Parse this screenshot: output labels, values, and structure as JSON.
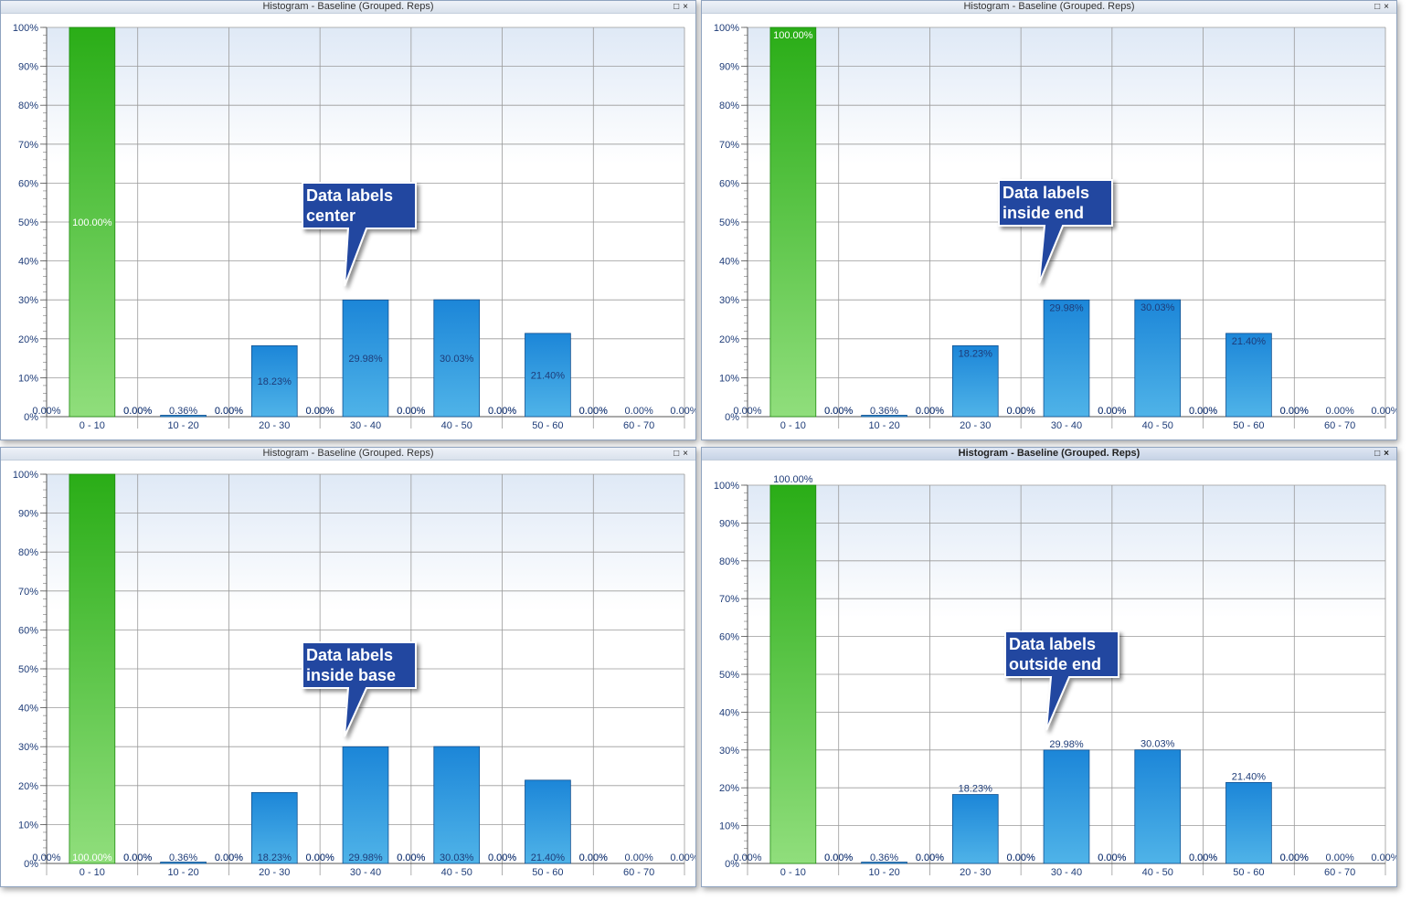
{
  "panels": [
    {
      "title": "Histogram - Baseline (Grouped. Reps)",
      "callout": [
        "Data labels",
        "center"
      ],
      "label_mode": "center",
      "active": false
    },
    {
      "title": "Histogram - Baseline (Grouped. Reps)",
      "callout": [
        "Data labels",
        "inside end"
      ],
      "label_mode": "inside-end",
      "active": false
    },
    {
      "title": "Histogram - Baseline (Grouped. Reps)",
      "callout": [
        "Data labels",
        "inside base"
      ],
      "label_mode": "inside-base",
      "active": false
    },
    {
      "title": "Histogram - Baseline (Grouped. Reps)",
      "callout": [
        "Data labels",
        "outside end"
      ],
      "label_mode": "outside-end",
      "active": true
    }
  ],
  "window_controls": {
    "restore_icon": "restore-icon",
    "close_icon": "close-icon"
  },
  "colors": {
    "green_top": "#2aad17",
    "green_bottom": "#90de7c",
    "blue_top": "#1c86d8",
    "blue_bottom": "#4fb3e8",
    "callout_fill": "#2146a0",
    "axis_text": "#1e3c78",
    "grid": "#9a9a9a"
  },
  "chart_data": {
    "type": "bar",
    "categories": [
      "0 - 10",
      "10 - 20",
      "20 - 30",
      "30 - 40",
      "40 - 50",
      "50 - 60",
      "60 - 70"
    ],
    "series": [
      {
        "values": [
          0.0,
          0.0,
          0.0,
          0.0,
          0.0,
          0.0,
          0.0
        ],
        "labels": [
          "0.00%",
          "0.00%",
          "0.00%",
          "0.00%",
          "0.00%",
          "0.00%",
          "0.00%"
        ]
      },
      {
        "values": [
          100.0,
          0.36,
          18.23,
          29.98,
          30.03,
          21.4,
          0.0
        ],
        "labels": [
          "100.00%",
          "0.36%",
          "18.23%",
          "29.98%",
          "30.03%",
          "21.40%",
          "0.00%"
        ]
      },
      {
        "values": [
          0.0,
          0.0,
          0.0,
          0.0,
          0.0,
          0.0,
          0.0
        ],
        "labels": [
          "0.00%",
          "0.00%",
          "0.00%",
          "0.00%",
          "0.00%",
          "0.00%",
          "0.00%"
        ]
      }
    ],
    "highlight_bar": {
      "category": "0 - 10",
      "color": "green"
    },
    "ylim": [
      0,
      100
    ],
    "yticks": [
      "0%",
      "10%",
      "20%",
      "30%",
      "40%",
      "50%",
      "60%",
      "70%",
      "80%",
      "90%",
      "100%"
    ],
    "grid": true,
    "title": "",
    "xlabel": "",
    "ylabel": ""
  }
}
